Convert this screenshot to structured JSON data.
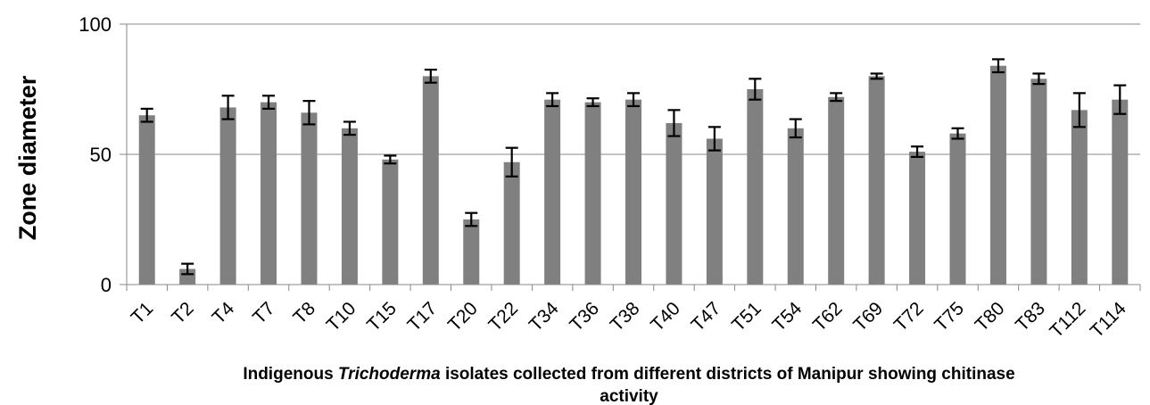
{
  "chart_data": {
    "type": "bar",
    "ylabel": "Zone diameter",
    "xlabel": {
      "before": "Indigenous ",
      "italic": "Trichoderma",
      "after": " isolates collected from different districts of Manipur showing chitinase",
      "line2": "activity"
    },
    "ylim": [
      0,
      100
    ],
    "yticks": [
      0,
      50,
      100
    ],
    "grid": true,
    "legend": "none",
    "bar_color": "#808080",
    "categories": [
      "T1",
      "T2",
      "T4",
      "T7",
      "T8",
      "T10",
      "T15",
      "T17",
      "T20",
      "T22",
      "T34",
      "T36",
      "T38",
      "T40",
      "T47",
      "T51",
      "T54",
      "T62",
      "T69",
      "T72",
      "T75",
      "T80",
      "T83",
      "T112",
      "T114"
    ],
    "values": [
      65,
      6,
      68,
      70,
      66,
      60,
      48,
      80,
      25,
      47,
      71,
      70,
      71,
      62,
      56,
      75,
      60,
      72,
      80,
      51,
      58,
      84,
      79,
      67,
      71
    ],
    "errors": [
      2.5,
      2,
      4.5,
      2.5,
      4.5,
      2.5,
      1.5,
      2.5,
      2.5,
      5.5,
      2.5,
      1.5,
      2.5,
      5,
      4.5,
      4,
      3.5,
      1.5,
      1,
      2,
      2,
      2.5,
      2,
      6.5,
      5.5
    ]
  }
}
